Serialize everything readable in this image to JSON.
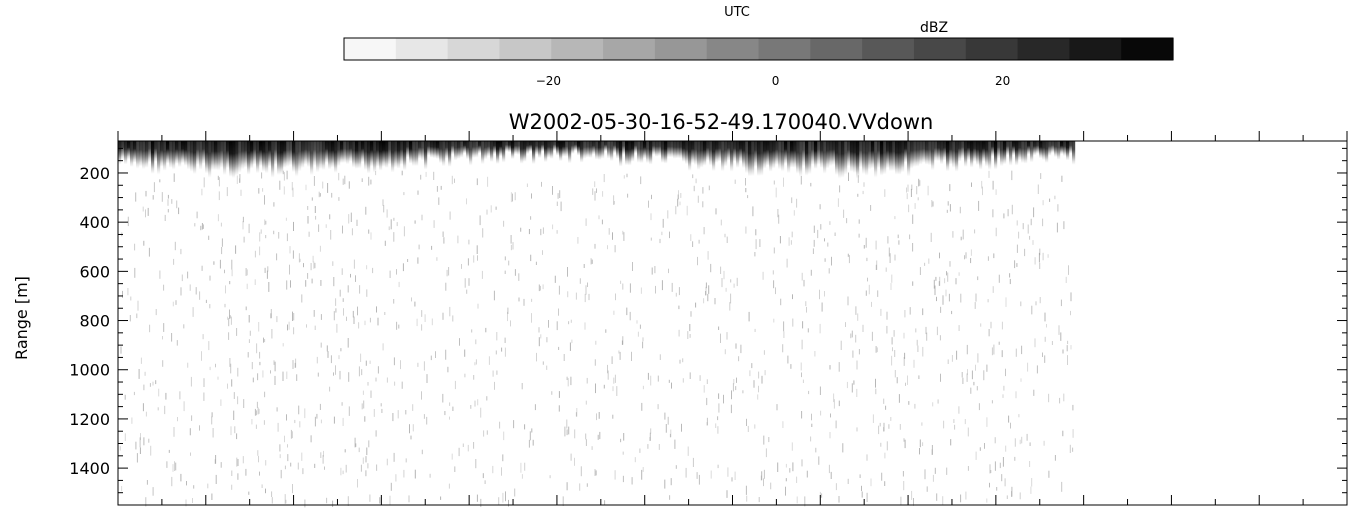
{
  "chart_data": {
    "type": "heatmap",
    "title": "W2002-05-30-16-52-49.170040.VVdown",
    "top_label": "UTC",
    "colorbar": {
      "label": "dBZ",
      "range": [
        -38,
        35
      ],
      "levels": 16,
      "ticks": [
        -20,
        0,
        20
      ],
      "tick_labels": [
        "−20",
        "0",
        "20"
      ],
      "colormap": "white-to-black"
    },
    "xaxis": {
      "label": "",
      "tick_labels": []
    },
    "yaxis": {
      "label": "Range [m]",
      "range": [
        70,
        1550
      ],
      "inverted": true,
      "ticks": [
        200,
        400,
        600,
        800,
        1000,
        1200,
        1400
      ],
      "tick_labels": [
        "200",
        "400",
        "600",
        "800",
        "1000",
        "1200",
        "1400"
      ]
    },
    "data_extent_fraction_x": 0.777,
    "echo_layer_range_m": [
      70,
      190
    ],
    "echo_peak_dbz": 30,
    "background_dbz": -35
  }
}
